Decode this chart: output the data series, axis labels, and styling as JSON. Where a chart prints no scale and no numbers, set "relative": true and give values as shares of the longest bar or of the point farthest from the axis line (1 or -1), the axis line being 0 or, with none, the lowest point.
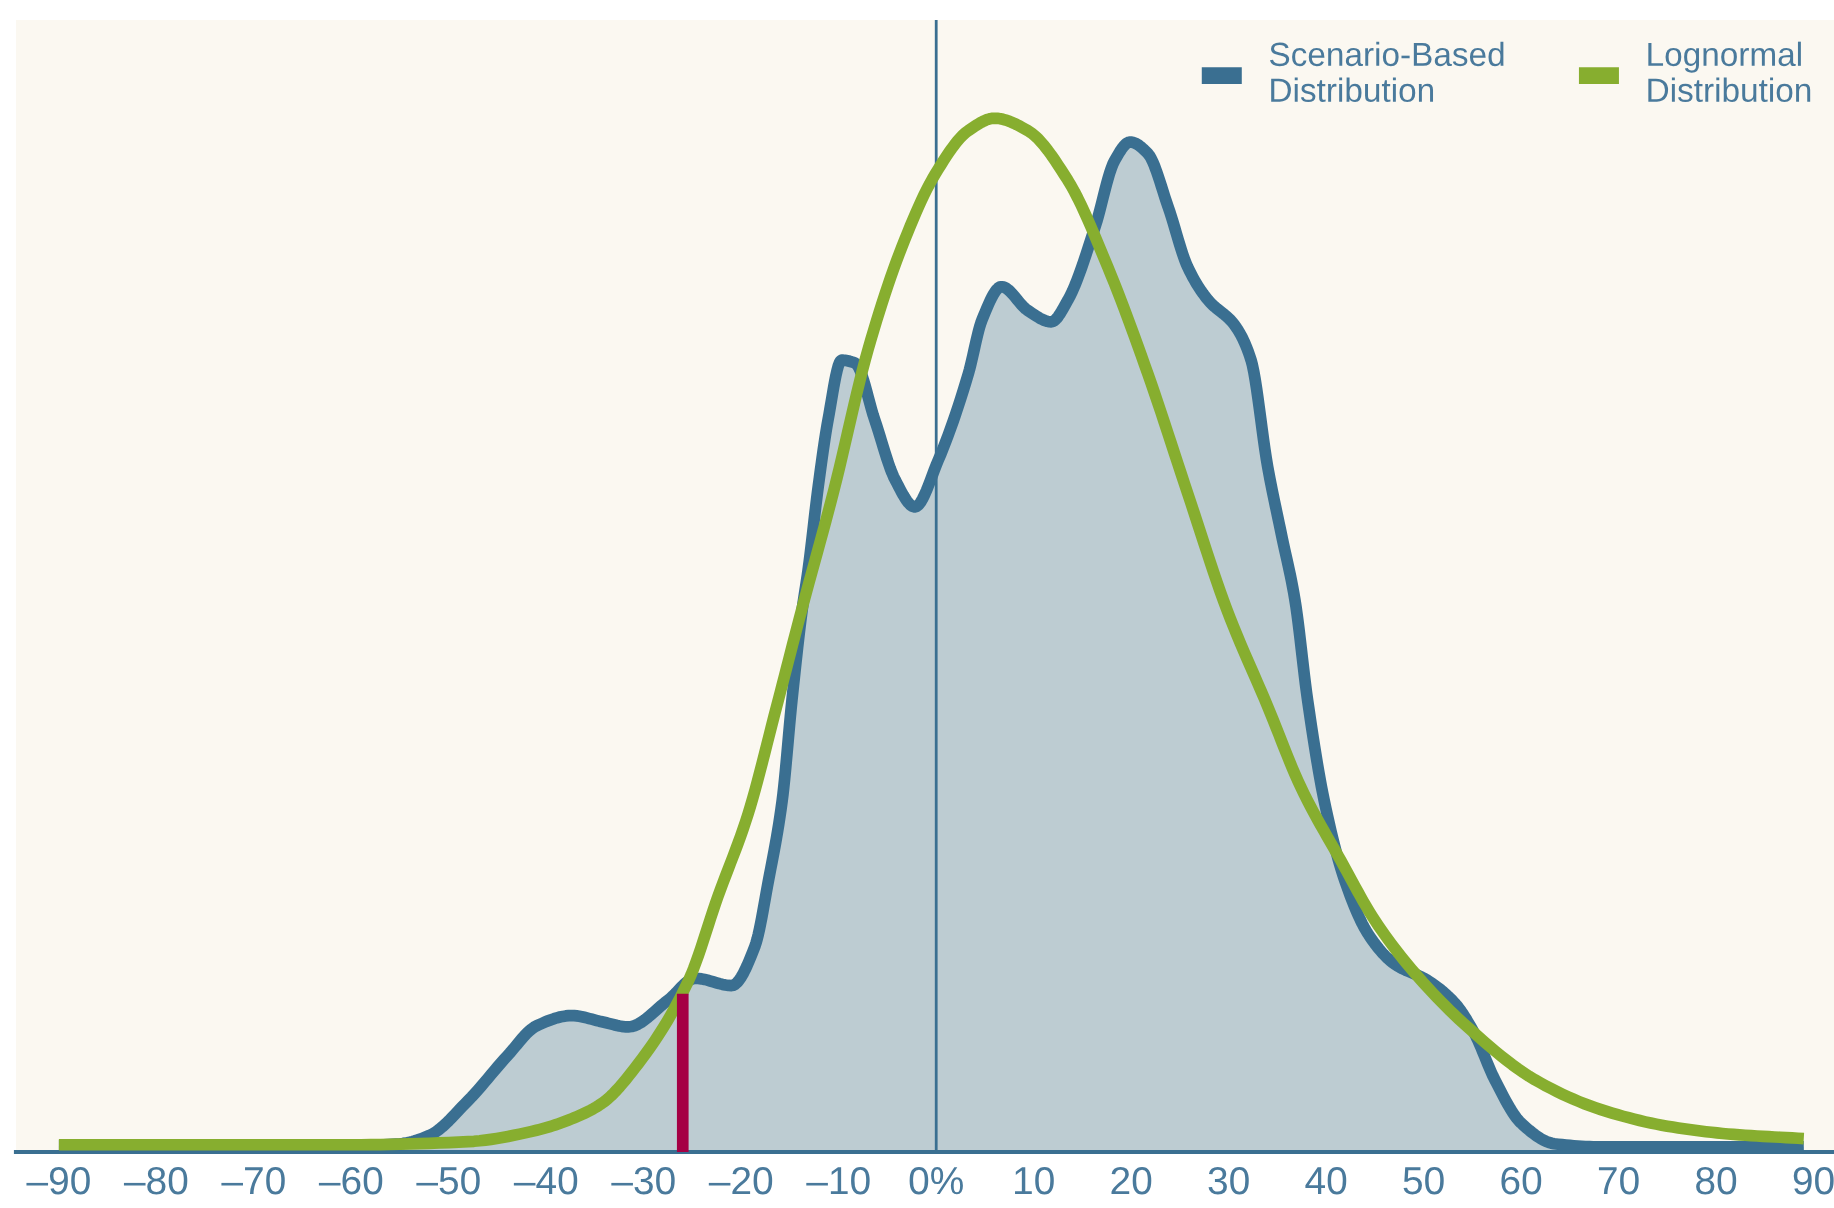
{
  "chart_data": {
    "type": "line",
    "relative": true,
    "legend": "top right",
    "xlim": [
      -94.4,
      92.1
    ],
    "xticks": [
      {
        "value": -90,
        "label": "–90"
      },
      {
        "value": -80,
        "label": "–80"
      },
      {
        "value": -70,
        "label": "–70"
      },
      {
        "value": -60,
        "label": "–60"
      },
      {
        "value": -50,
        "label": "–50"
      },
      {
        "value": -40,
        "label": "–40"
      },
      {
        "value": -30,
        "label": "–30"
      },
      {
        "value": -20,
        "label": "–20"
      },
      {
        "value": -10,
        "label": "–10"
      },
      {
        "value": 0,
        "label": "0%"
      },
      10,
      20,
      30,
      40,
      50,
      60,
      70,
      80,
      90
    ],
    "ref_lines": [
      {
        "axis": "x",
        "value": 0,
        "color": "#3a6f91"
      }
    ],
    "series": [
      {
        "name": "Scenario-Based Distribution",
        "type": "area",
        "color": "#3a6f91",
        "x": [
          -90,
          -60,
          -55,
          -52,
          -48,
          -44,
          -41,
          -37.4,
          -34.3,
          -31.6,
          -27.5,
          -24.7,
          -21,
          -18.6,
          -17.2,
          -15.8,
          -14.8,
          -13.8,
          -13.1,
          -12.1,
          -11.1,
          -9.7,
          -8.3,
          -6.3,
          -4.2,
          -2.2,
          0.2,
          3.3,
          4.7,
          6.7,
          9.4,
          11.8,
          13.5,
          16.3,
          18.3,
          19.9,
          21.7,
          23.8,
          25.8,
          27.9,
          30.6,
          32.3,
          34.0,
          35.4,
          36.8,
          38.1,
          39.8,
          41.9,
          44.3,
          47.0,
          50.4,
          53.2,
          55.2,
          57.3,
          60.0,
          63.4,
          68.2,
          89
        ],
        "values": [
          0.006,
          0.006,
          0.008,
          0.016,
          0.05,
          0.093,
          0.122,
          0.132,
          0.126,
          0.121,
          0.147,
          0.168,
          0.161,
          0.199,
          0.263,
          0.34,
          0.437,
          0.521,
          0.566,
          0.644,
          0.708,
          0.766,
          0.763,
          0.708,
          0.65,
          0.624,
          0.669,
          0.753,
          0.805,
          0.837,
          0.814,
          0.803,
          0.824,
          0.895,
          0.959,
          0.977,
          0.966,
          0.914,
          0.856,
          0.824,
          0.8,
          0.766,
          0.663,
          0.598,
          0.534,
          0.437,
          0.34,
          0.263,
          0.211,
          0.182,
          0.166,
          0.144,
          0.115,
          0.07,
          0.028,
          0.008,
          0.005,
          0.005
        ]
      },
      {
        "name": "Lognormal Distribution",
        "color": "#87ae2f",
        "x": [
          -90,
          -60,
          -48,
          -41,
          -37.7,
          -34.3,
          -30.6,
          -25.4,
          -22.4,
          -19.3,
          -16.4,
          -13.9,
          -10.5,
          -7.0,
          -3.5,
          -0.1,
          3.3,
          6.0,
          9.4,
          13.5,
          17.6,
          21.7,
          25.8,
          29.8,
          34.0,
          37.4,
          41.5,
          45.0,
          49.1,
          54.5,
          61.4,
          68.2,
          75.0,
          81.8,
          89
        ],
        "values": [
          0.007,
          0.007,
          0.01,
          0.021,
          0.031,
          0.047,
          0.085,
          0.166,
          0.247,
          0.327,
          0.43,
          0.521,
          0.64,
          0.776,
          0.876,
          0.946,
          0.988,
          1.0,
          0.988,
          0.94,
          0.856,
          0.753,
          0.637,
          0.525,
          0.431,
          0.353,
          0.282,
          0.224,
          0.173,
          0.121,
          0.07,
          0.041,
          0.025,
          0.017,
          0.013
        ]
      },
      {
        "color": "#a50044",
        "x": [
          -26,
          -26
        ],
        "values": [
          0,
          0.153
        ]
      }
    ]
  }
}
